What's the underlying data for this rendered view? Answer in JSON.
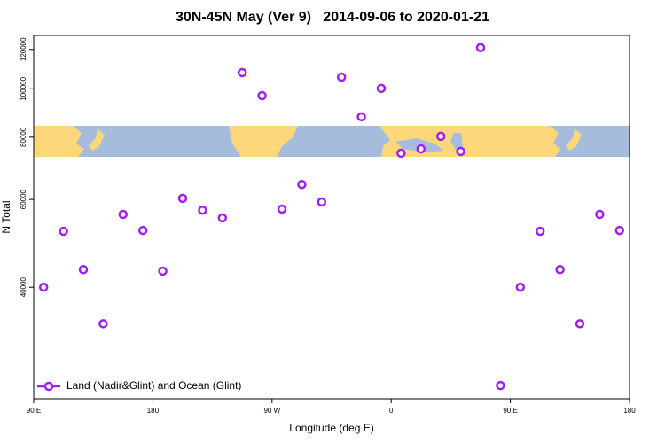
{
  "chart_data": {
    "type": "scatter",
    "title": "30N-45N May (Ver 9)   2014-09-06 to 2020-01-21",
    "x_label": "Longitude (deg E)",
    "y_label": "N Total",
    "y_scale": "log",
    "legend_position": "bottom-left",
    "series": [
      {
        "name": "Land (Nadir&Glint) and Ocean (Glint)",
        "color": "#a020f0",
        "x": [
          97.5,
          112.5,
          127.5,
          142.5,
          157.5,
          172.5,
          187.5,
          202.5,
          217.5,
          232.5,
          247.5,
          262.5,
          277.5,
          292.5,
          307.5,
          322.5,
          337.5,
          352.5,
          367.5,
          382.5,
          397.5,
          412.5,
          427.5,
          442.5,
          457.5,
          472.5,
          487.5,
          502.5,
          517.5,
          532.5
        ],
        "values": [
          40000,
          51800,
          43400,
          33800,
          56000,
          52000,
          43100,
          60300,
          57100,
          55100,
          107800,
          96900,
          57400,
          64300,
          59300,
          105600,
          87900,
          100200,
          74300,
          75800,
          80300,
          74900,
          121000,
          25400,
          40000,
          51800,
          43400,
          33800,
          56000,
          52000
        ]
      }
    ],
    "xlim": [
      90,
      540
    ],
    "xticks": [
      {
        "value": 90,
        "label": "90 E"
      },
      {
        "value": 180,
        "label": "180"
      },
      {
        "value": 270,
        "label": "90 W"
      },
      {
        "value": 360,
        "label": "0"
      },
      {
        "value": 450,
        "label": "90 E"
      },
      {
        "value": 540,
        "label": "180"
      }
    ],
    "ylim": [
      23900,
      128000
    ],
    "yticks": [
      40000,
      60000,
      80000,
      100000,
      120000
    ]
  }
}
